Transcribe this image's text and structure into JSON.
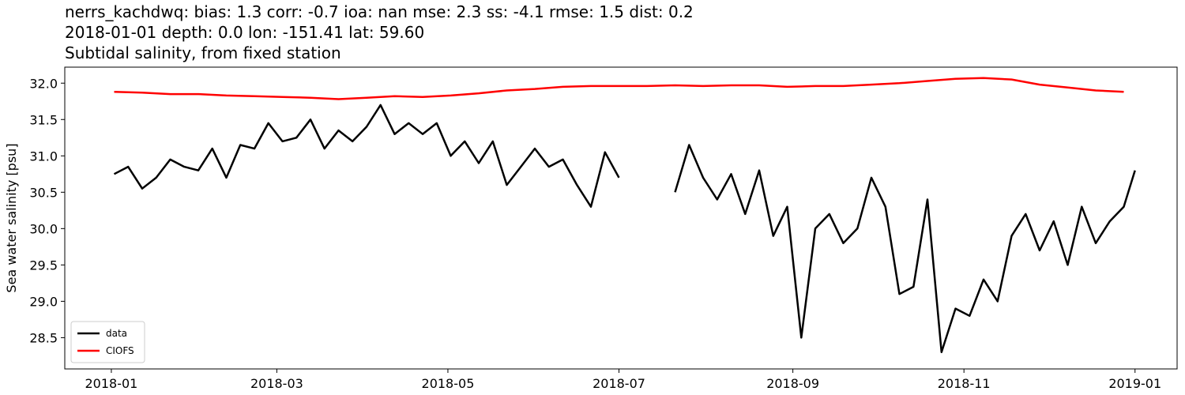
{
  "chart_data": {
    "type": "line",
    "title": [
      "nerrs_kachdwq: bias: 1.3  corr: -0.7  ioa: nan  mse: 2.3  ss: -4.1  rmse: 1.5  dist: 0.2",
      "2018-01-01 depth: 0.0 lon: -151.41 lat: 59.60",
      "Subtidal salinity, from fixed station"
    ],
    "y_label": "Sea water salinity [psu]",
    "xlim": [
      -16.6,
      380
    ],
    "ylim": [
      28.07,
      32.22
    ],
    "xticks": [
      {
        "value": 0,
        "label": "2018-01"
      },
      {
        "value": 59,
        "label": "2018-03"
      },
      {
        "value": 120,
        "label": "2018-05"
      },
      {
        "value": 181,
        "label": "2018-07"
      },
      {
        "value": 243,
        "label": "2018-09"
      },
      {
        "value": 304,
        "label": "2018-11"
      },
      {
        "value": 365,
        "label": "2019-01"
      }
    ],
    "yticks": [
      {
        "value": 28.5,
        "label": "28.5"
      },
      {
        "value": 29,
        "label": "29.0"
      },
      {
        "value": 29.5,
        "label": "29.5"
      },
      {
        "value": 30,
        "label": "30.0"
      },
      {
        "value": 30.5,
        "label": "30.5"
      },
      {
        "value": 31,
        "label": "31.0"
      },
      {
        "value": 31.5,
        "label": "31.5"
      },
      {
        "value": 32,
        "label": "32.0"
      }
    ],
    "legend": "lower left",
    "series": [
      {
        "name": "data",
        "color": "#000000",
        "x": [
          1,
          6,
          11,
          16,
          21,
          26,
          31,
          36,
          41,
          46,
          51,
          56,
          61,
          66,
          71,
          76,
          81,
          86,
          91,
          96,
          101,
          106,
          111,
          116,
          121,
          126,
          131,
          136,
          141,
          146,
          151,
          156,
          161,
          166,
          171,
          176,
          181,
          186,
          191,
          196,
          201,
          206,
          211,
          216,
          221,
          226,
          231,
          236,
          241,
          246,
          251,
          256,
          261,
          266,
          271,
          276,
          281,
          286,
          291,
          296,
          301,
          306,
          311,
          316,
          321,
          326,
          331,
          336,
          341,
          346,
          351,
          356,
          361,
          365
        ],
        "values": [
          30.75,
          30.85,
          30.55,
          30.7,
          30.95,
          30.85,
          30.8,
          31.1,
          30.7,
          31.15,
          31.1,
          31.45,
          31.2,
          31.25,
          31.5,
          31.1,
          31.35,
          31.2,
          31.4,
          31.7,
          31.3,
          31.45,
          31.3,
          31.45,
          31.0,
          31.2,
          30.9,
          31.2,
          30.6,
          30.85,
          31.1,
          30.85,
          30.95,
          30.6,
          30.3,
          31.05,
          30.7,
          null,
          null,
          null,
          30.5,
          31.15,
          30.7,
          30.4,
          30.75,
          30.2,
          30.8,
          29.9,
          30.3,
          28.5,
          30.0,
          30.2,
          29.8,
          30.0,
          30.7,
          30.3,
          29.1,
          29.2,
          30.4,
          28.3,
          28.9,
          28.8,
          29.3,
          29.0,
          29.9,
          30.2,
          29.7,
          30.1,
          29.5,
          30.3,
          29.8,
          30.1,
          30.3,
          30.8
        ]
      },
      {
        "name": "CIOFS",
        "color": "#ff0000",
        "x": [
          1,
          11,
          21,
          31,
          41,
          51,
          61,
          71,
          81,
          91,
          101,
          111,
          121,
          131,
          141,
          151,
          161,
          171,
          181,
          191,
          201,
          211,
          221,
          231,
          241,
          251,
          261,
          271,
          281,
          291,
          301,
          311,
          321,
          331,
          341,
          351,
          361
        ],
        "values": [
          31.88,
          31.87,
          31.85,
          31.85,
          31.83,
          31.82,
          31.81,
          31.8,
          31.78,
          31.8,
          31.82,
          31.81,
          31.83,
          31.86,
          31.9,
          31.92,
          31.95,
          31.96,
          31.96,
          31.96,
          31.97,
          31.96,
          31.97,
          31.97,
          31.95,
          31.96,
          31.96,
          31.98,
          32.0,
          32.03,
          32.06,
          32.07,
          32.05,
          31.98,
          31.94,
          31.9,
          31.88
        ]
      }
    ]
  }
}
